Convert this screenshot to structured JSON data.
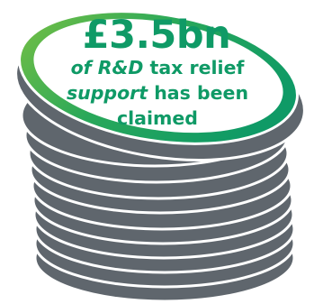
{
  "graphic": {
    "figure": "£3.5bn",
    "line1_italic": "of R&D",
    "line1_rest": " tax relief",
    "line2_italic": "support",
    "line2_rest": " has been",
    "line3": "claimed"
  },
  "colors": {
    "coin_edge": "#5f666d",
    "coin_stripe": "#ffffff",
    "ring_light": "#7ac143",
    "ring_dark": "#0f9a66",
    "text": "#0f9a66"
  }
}
